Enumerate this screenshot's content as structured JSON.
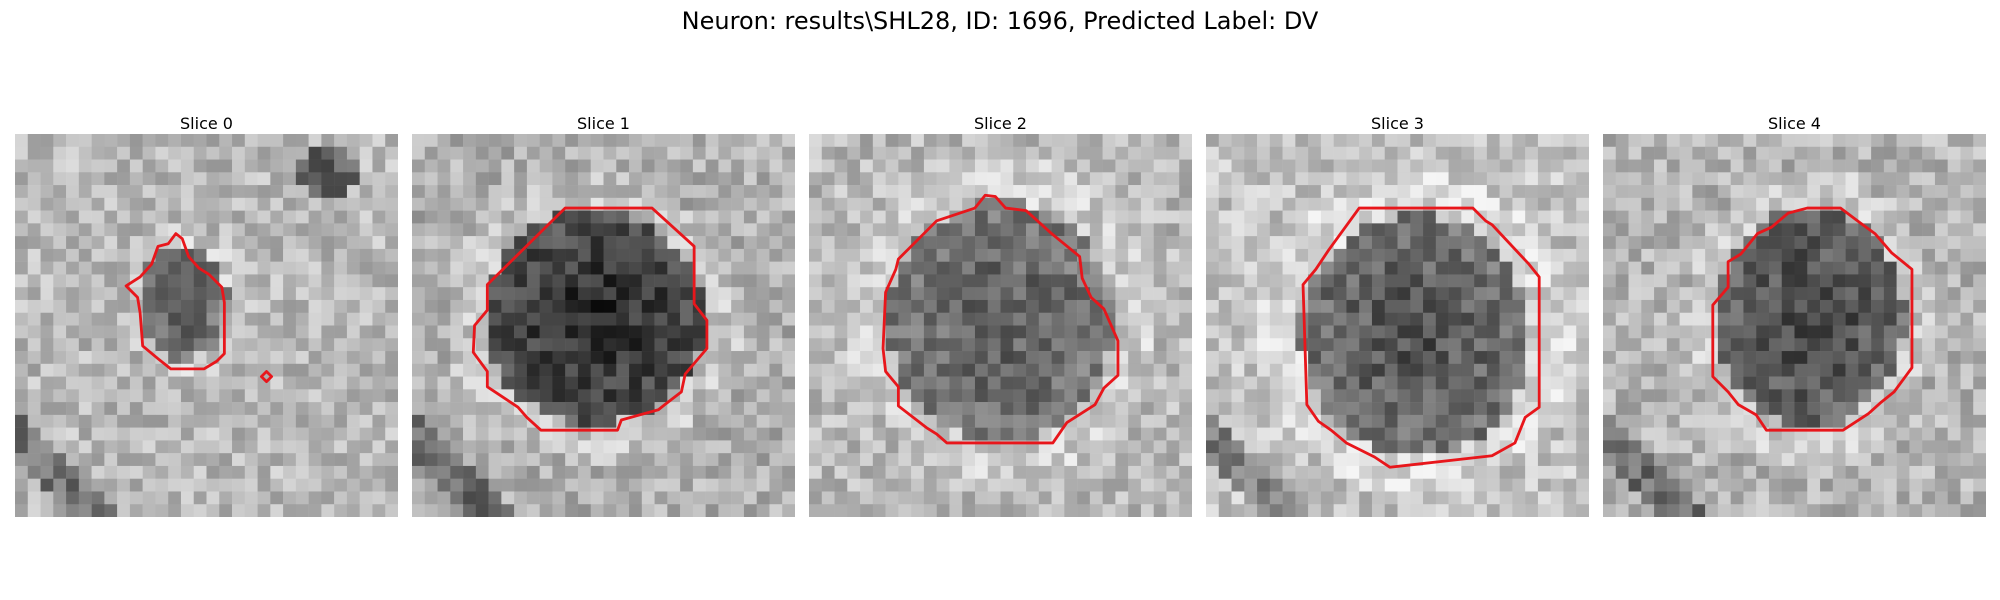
{
  "figure": {
    "title": "Neuron: results\\SHL28, ID: 1696, Predicted Label: DV"
  },
  "panels": [
    {
      "title": "Slice 0",
      "contour_color": "#e8161b"
    },
    {
      "title": "Slice 1",
      "contour_color": "#e8161b"
    },
    {
      "title": "Slice 2",
      "contour_color": "#e8161b"
    },
    {
      "title": "Slice 3",
      "contour_color": "#e8161b"
    },
    {
      "title": "Slice 4",
      "contour_color": "#e8161b"
    }
  ]
}
